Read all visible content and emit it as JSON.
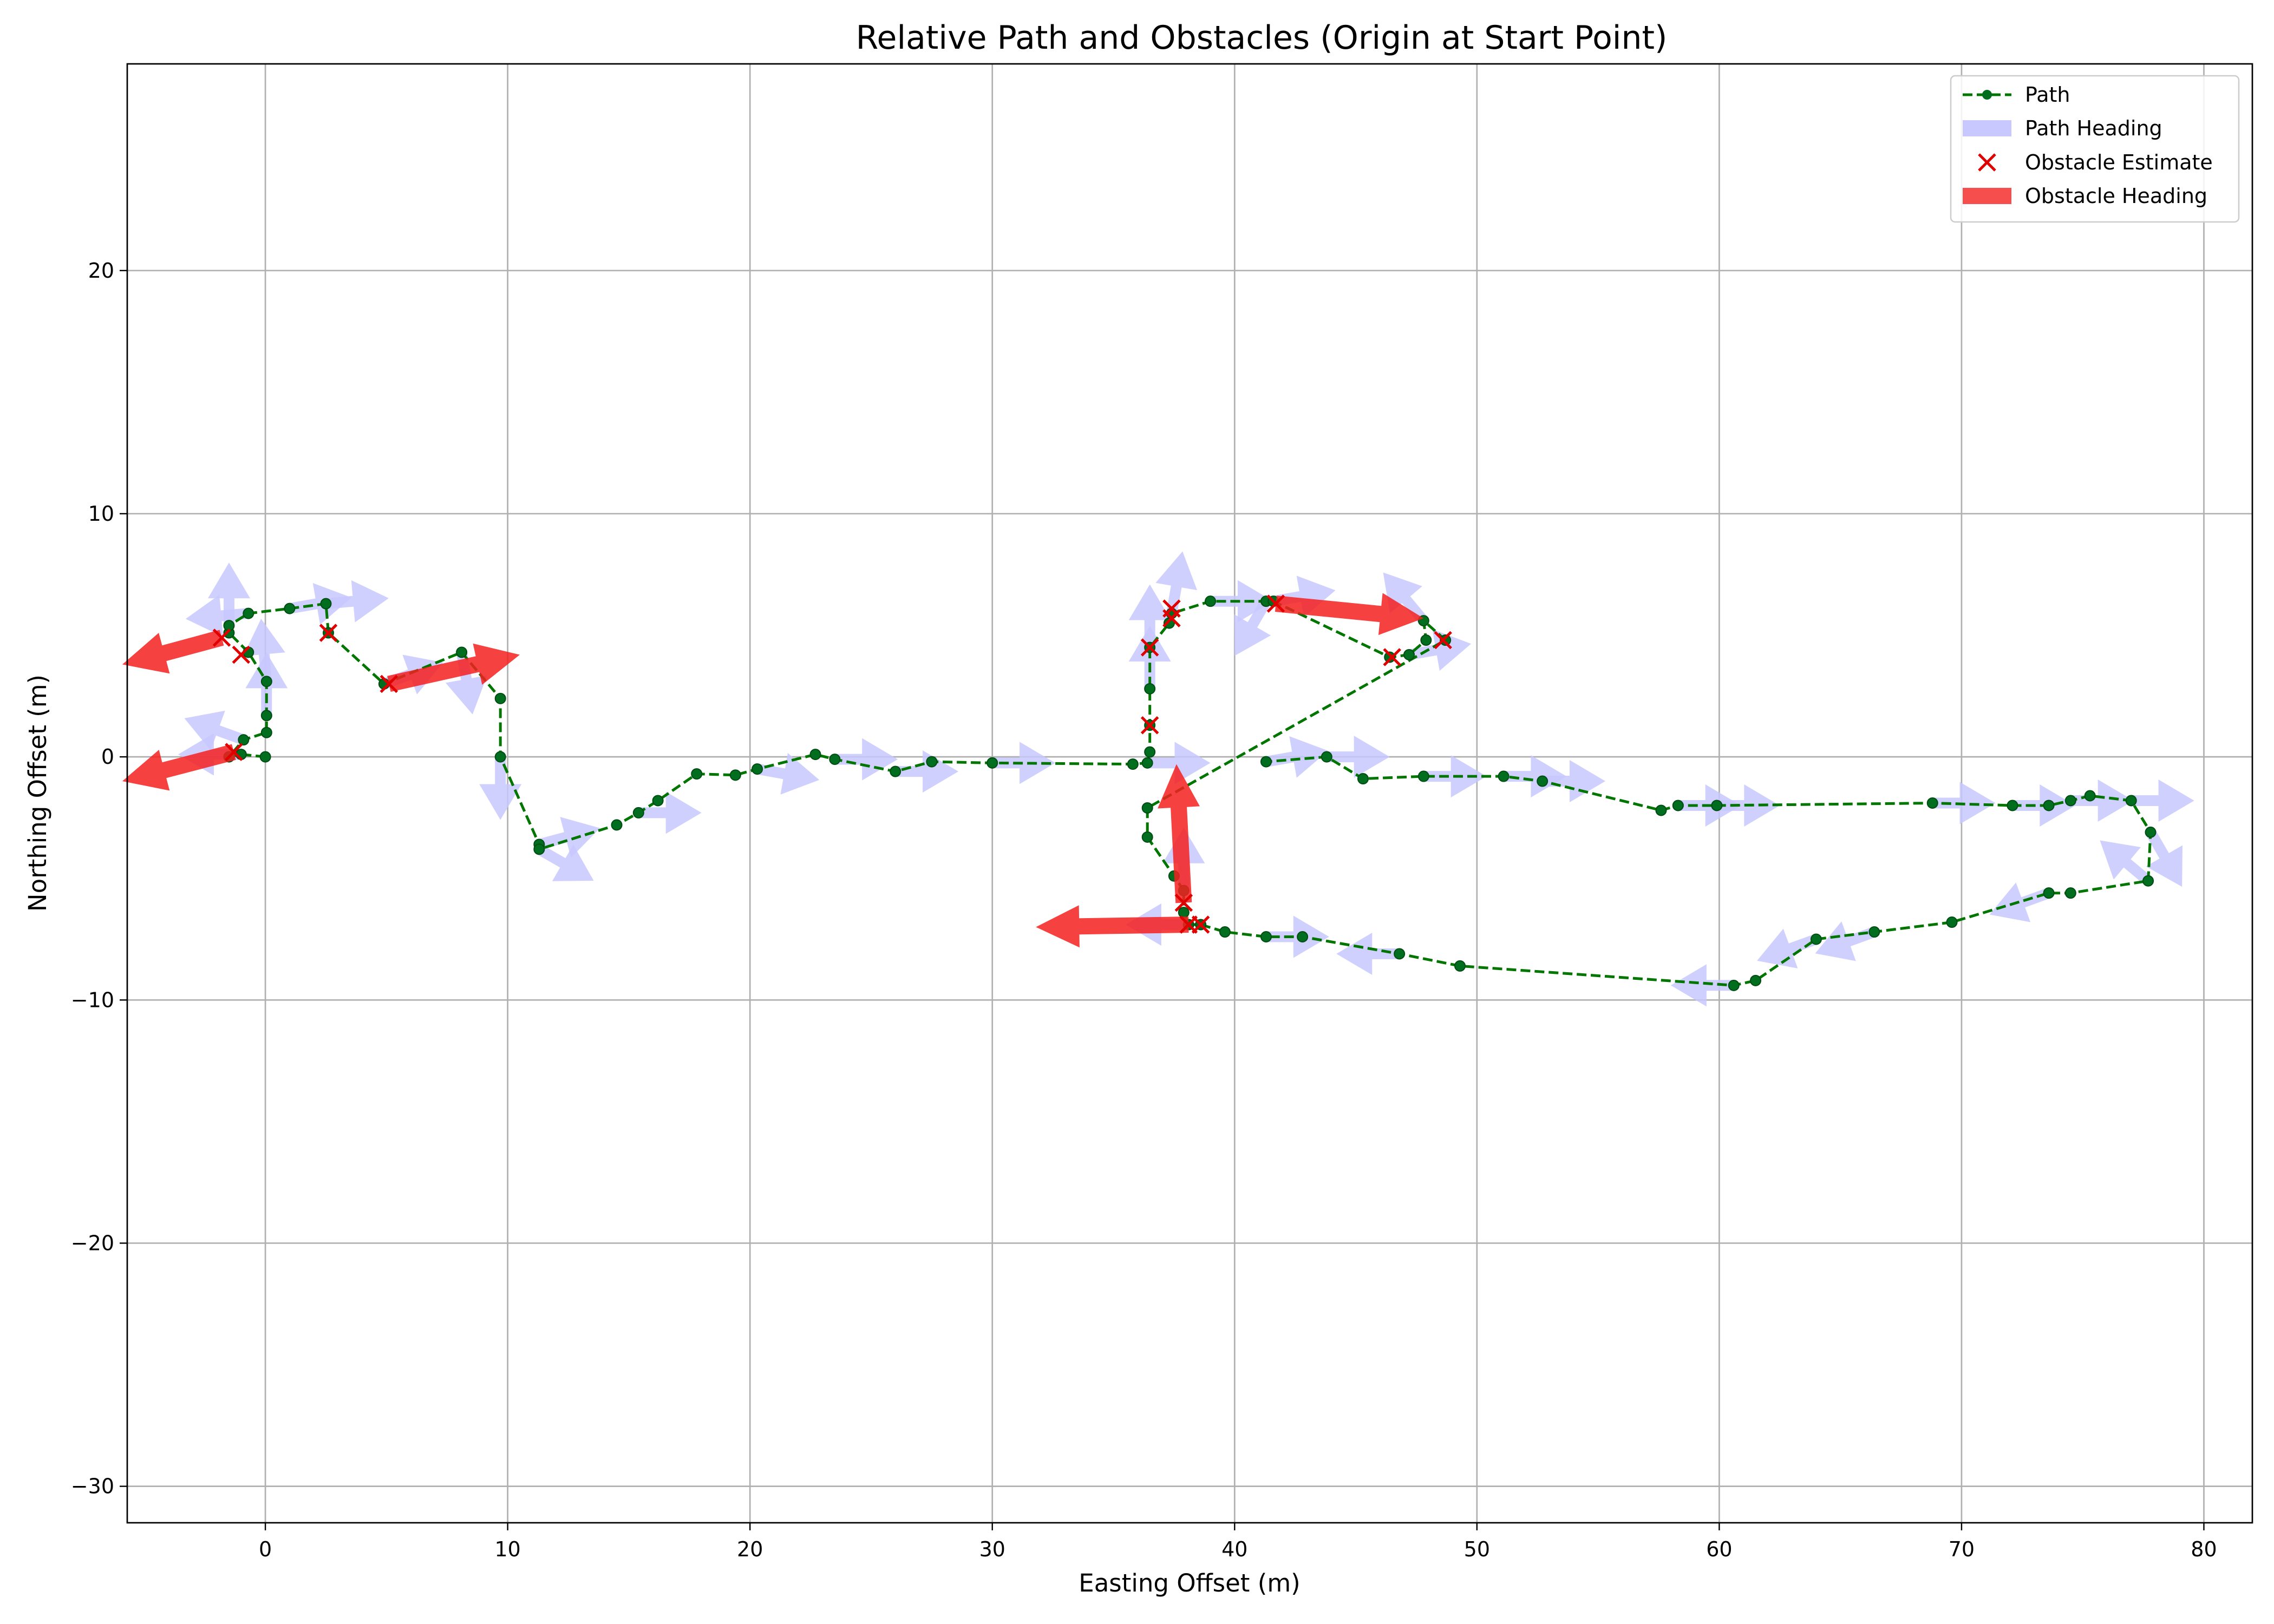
{
  "chart_data": {
    "type": "scatter",
    "title": "Relative Path and Obstacles (Origin at Start Point)",
    "xlabel": "Easting Offset (m)",
    "ylabel": "Northing Offset (m)",
    "xlim": [
      -5.7,
      82
    ],
    "ylim": [
      -31.5,
      28.5
    ],
    "xticks": [
      0,
      10,
      20,
      30,
      40,
      50,
      60,
      70,
      80
    ],
    "yticks": [
      -30,
      -20,
      -10,
      0,
      10,
      20
    ],
    "xtick_labels": [
      "0",
      "10",
      "20",
      "30",
      "40",
      "50",
      "60",
      "70",
      "80"
    ],
    "ytick_labels": [
      "−30",
      "−20",
      "−10",
      "0",
      "10",
      "20"
    ],
    "grid": true,
    "legend_position": "top-right",
    "legend": {
      "path": "Path",
      "path_heading": "Path Heading",
      "obstacle_estimate": "Obstacle Estimate",
      "obstacle_heading": "Obstacle Heading"
    },
    "colors": {
      "path": "#007500",
      "path_point": "#006d1f",
      "path_heading": "#c8c8ff",
      "obstacle_estimate": "#e00000",
      "obstacle_heading": "#f42020"
    },
    "path": [
      [
        0,
        0
      ],
      [
        -1,
        0.1
      ],
      [
        -1.5,
        0
      ],
      [
        -0.9,
        0.7
      ],
      [
        0.05,
        1
      ],
      [
        0.05,
        1.7
      ],
      [
        0.05,
        3.1
      ],
      [
        -0.7,
        4.3
      ],
      [
        -1.5,
        5.1
      ],
      [
        -1.5,
        5.4
      ],
      [
        -0.7,
        5.9
      ],
      [
        1,
        6.1
      ],
      [
        2.5,
        6.3
      ],
      [
        2.6,
        5.1
      ],
      [
        4.9,
        3
      ],
      [
        8.1,
        4.3
      ],
      [
        9.7,
        2.4
      ],
      [
        9.7,
        0
      ],
      [
        11.3,
        -3.6
      ],
      [
        11.3,
        -3.8
      ],
      [
        14.5,
        -2.8
      ],
      [
        15.4,
        -2.3
      ],
      [
        16.2,
        -1.8
      ],
      [
        17.8,
        -0.7
      ],
      [
        19.4,
        -0.75
      ],
      [
        20.3,
        -0.5
      ],
      [
        22.7,
        0.1
      ],
      [
        23.5,
        -0.1
      ],
      [
        26,
        -0.6
      ],
      [
        27.5,
        -0.2
      ],
      [
        30,
        -0.25
      ],
      [
        35.8,
        -0.3
      ],
      [
        36.4,
        -0.25
      ],
      [
        36.5,
        0.2
      ],
      [
        36.5,
        1.3
      ],
      [
        36.5,
        2.8
      ],
      [
        36.5,
        4.5
      ],
      [
        37.3,
        5.5
      ],
      [
        37.4,
        5.9
      ],
      [
        39,
        6.4
      ],
      [
        41.3,
        6.4
      ],
      [
        41.6,
        6.4
      ],
      [
        46.4,
        4.1
      ],
      [
        47.2,
        4.2
      ],
      [
        47.9,
        4.8
      ],
      [
        47.8,
        5.6
      ],
      [
        48.7,
        4.8
      ],
      [
        36.4,
        -2.1
      ],
      [
        36.4,
        -3.3
      ],
      [
        37.5,
        -4.9
      ],
      [
        37.9,
        -5.5
      ],
      [
        37.9,
        -6.4
      ],
      [
        38.1,
        -6.9
      ],
      [
        38.6,
        -6.9
      ],
      [
        39.6,
        -7.2
      ],
      [
        41.3,
        -7.4
      ],
      [
        42.8,
        -7.4
      ],
      [
        46.8,
        -8.1
      ],
      [
        49.3,
        -8.6
      ],
      [
        60.6,
        -9.4
      ],
      [
        61.5,
        -9.2
      ],
      [
        64,
        -7.5
      ],
      [
        66.4,
        -7.2
      ],
      [
        69.6,
        -6.8
      ],
      [
        73.6,
        -5.6
      ],
      [
        74.5,
        -5.6
      ],
      [
        77.7,
        -5.1
      ],
      [
        77.8,
        -3.1
      ],
      [
        77,
        -1.8
      ],
      [
        75.3,
        -1.6
      ],
      [
        74.5,
        -1.8
      ],
      [
        73.6,
        -2
      ],
      [
        72.1,
        -2
      ],
      [
        68.8,
        -1.9
      ],
      [
        59.9,
        -2
      ],
      [
        58.3,
        -2
      ],
      [
        57.6,
        -2.2
      ],
      [
        52.7,
        -1
      ],
      [
        51.1,
        -0.8
      ],
      [
        47.8,
        -0.8
      ],
      [
        45.3,
        -0.9
      ],
      [
        43.8,
        0
      ],
      [
        41.3,
        -0.2
      ]
    ],
    "path_headings": [
      [
        -1,
        0.1,
        180
      ],
      [
        -0.9,
        0.7,
        160
      ],
      [
        0.05,
        1.7,
        90
      ],
      [
        0.05,
        3.1,
        95
      ],
      [
        -1.5,
        5.4,
        90
      ],
      [
        -0.7,
        5.9,
        185
      ],
      [
        1,
        6.1,
        10
      ],
      [
        2.5,
        6.3,
        5
      ],
      [
        4.9,
        3,
        20
      ],
      [
        8.1,
        4.3,
        -80
      ],
      [
        9.7,
        0,
        -90
      ],
      [
        11.3,
        -3.8,
        -30
      ],
      [
        11.3,
        -3.6,
        15
      ],
      [
        15.4,
        -2.3,
        0
      ],
      [
        20.3,
        -0.5,
        -10
      ],
      [
        23.5,
        -0.1,
        0
      ],
      [
        26,
        -0.6,
        0
      ],
      [
        30,
        -0.25,
        0
      ],
      [
        36.5,
        2.8,
        90
      ],
      [
        36.5,
        4.5,
        90
      ],
      [
        37.4,
        5.9,
        80
      ],
      [
        39,
        6.4,
        0
      ],
      [
        41.3,
        6.4,
        -120
      ],
      [
        41.6,
        6.4,
        10
      ],
      [
        47.2,
        4.2,
        10
      ],
      [
        47.8,
        5.6,
        130
      ],
      [
        37.9,
        -5.5,
        90
      ],
      [
        38.1,
        -6.9,
        180
      ],
      [
        41.3,
        -7.4,
        0
      ],
      [
        46.8,
        -8.1,
        180
      ],
      [
        60.6,
        -9.4,
        180
      ],
      [
        64,
        -7.5,
        200
      ],
      [
        66.4,
        -7.2,
        200
      ],
      [
        73.6,
        -5.6,
        200
      ],
      [
        77.7,
        -5.1,
        140
      ],
      [
        77.8,
        -3.1,
        -60
      ],
      [
        77,
        -1.8,
        0
      ],
      [
        74.5,
        -1.8,
        0
      ],
      [
        72.1,
        -2,
        0
      ],
      [
        68.8,
        -1.9,
        0
      ],
      [
        59.9,
        -2,
        0
      ],
      [
        58.3,
        -2,
        0
      ],
      [
        51.1,
        -0.8,
        0
      ],
      [
        52.7,
        -1,
        0
      ],
      [
        47.8,
        -0.8,
        0
      ],
      [
        43.8,
        0,
        0
      ],
      [
        41.3,
        -0.2,
        10
      ],
      [
        36.4,
        -0.25,
        0
      ]
    ],
    "obstacle_estimates": [
      [
        -1.3,
        0.2
      ],
      [
        -1,
        4.2
      ],
      [
        -1.8,
        4.9
      ],
      [
        2.6,
        5.1
      ],
      [
        5.1,
        3
      ],
      [
        36.5,
        1.3
      ],
      [
        36.5,
        4.5
      ],
      [
        37.4,
        5.7
      ],
      [
        37.4,
        6.1
      ],
      [
        41.7,
        6.3
      ],
      [
        46.5,
        4.1
      ],
      [
        48.6,
        4.8
      ],
      [
        37.9,
        -6
      ],
      [
        38.1,
        -6.9
      ],
      [
        38.6,
        -6.9
      ]
    ],
    "obstacle_headings": [
      [
        -1.3,
        0.2,
        -5.9,
        -1
      ],
      [
        -1.8,
        4.9,
        -5.9,
        3.8
      ],
      [
        5.1,
        3,
        10.5,
        4.2
      ],
      [
        41.7,
        6.3,
        47.8,
        5.7
      ],
      [
        37.9,
        -6,
        37.6,
        -0.3
      ],
      [
        38.1,
        -6.9,
        31.8,
        -7
      ]
    ]
  }
}
